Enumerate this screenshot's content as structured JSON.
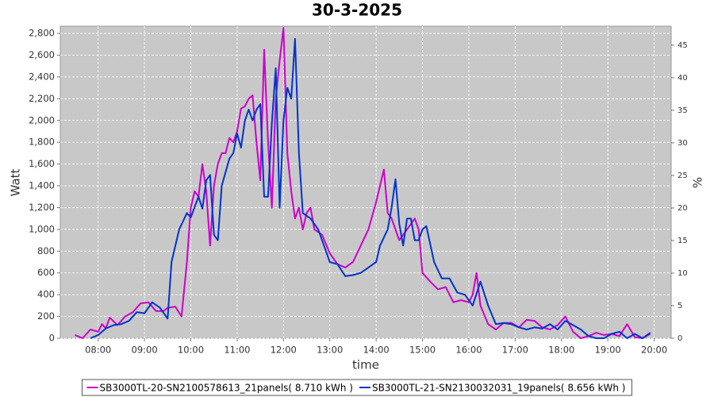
{
  "chart_data": {
    "type": "line",
    "title": "30-3-2025",
    "x_label": "time",
    "y_label": "Watt",
    "y2_label": "%",
    "xlim": [
      "07:11",
      "20:22"
    ],
    "xticks": [
      "08:00",
      "09:00",
      "10:00",
      "11:00",
      "12:00",
      "13:00",
      "14:00",
      "15:00",
      "16:00",
      "17:00",
      "18:00",
      "19:00",
      "20:00"
    ],
    "ylim": [
      0,
      2866
    ],
    "yticks": [
      0,
      200,
      400,
      600,
      800,
      {
        "value": 1000,
        "label": "1,000"
      },
      {
        "value": 1200,
        "label": "1,200"
      },
      {
        "value": 1400,
        "label": "1,400"
      },
      {
        "value": 1600,
        "label": "1,600"
      },
      {
        "value": 1800,
        "label": "1,800"
      },
      {
        "value": 2000,
        "label": "2,000"
      },
      {
        "value": 2200,
        "label": "2,200"
      },
      {
        "value": 2400,
        "label": "2,400"
      },
      {
        "value": 2600,
        "label": "2,600"
      },
      {
        "value": 2800,
        "label": "2,800"
      }
    ],
    "y2lim": [
      0,
      47.9
    ],
    "y2ticks": [
      0,
      5,
      10,
      15,
      20,
      25,
      30,
      35,
      40,
      45
    ],
    "grid": true,
    "legend": "bottom",
    "series": [
      {
        "name": "SB3000TL-20-SN2100578613_21panels( 8.710 kWh )",
        "color": "#cc00cc",
        "x": [
          "07:30",
          "07:40",
          "07:50",
          "08:00",
          "08:05",
          "08:10",
          "08:15",
          "08:25",
          "08:35",
          "08:45",
          "08:55",
          "09:05",
          "09:15",
          "09:25",
          "09:30",
          "09:40",
          "09:48",
          "09:55",
          "10:00",
          "10:05",
          "10:10",
          "10:15",
          "10:20",
          "10:25",
          "10:30",
          "10:35",
          "10:40",
          "10:45",
          "10:50",
          "10:55",
          "11:00",
          "11:05",
          "11:10",
          "11:15",
          "11:20",
          "11:25",
          "11:30",
          "11:35",
          "11:40",
          "11:45",
          "11:50",
          "11:55",
          "12:00",
          "12:05",
          "12:10",
          "12:15",
          "12:20",
          "12:25",
          "12:30",
          "12:35",
          "12:40",
          "12:50",
          "13:00",
          "13:10",
          "13:20",
          "13:30",
          "13:40",
          "13:50",
          "14:00",
          "14:10",
          "14:15",
          "14:20",
          "14:30",
          "14:40",
          "14:50",
          "14:55",
          "15:00",
          "15:10",
          "15:20",
          "15:30",
          "15:40",
          "15:50",
          "16:00",
          "16:05",
          "16:10",
          "16:15",
          "16:25",
          "16:35",
          "16:45",
          "16:55",
          "17:05",
          "17:15",
          "17:25",
          "17:35",
          "17:45",
          "17:55",
          "18:05",
          "18:15",
          "18:25",
          "18:35",
          "18:45",
          "18:55",
          "19:05",
          "19:15",
          "19:25",
          "19:35",
          "19:45",
          "19:55"
        ],
        "values": [
          30,
          0,
          80,
          60,
          130,
          90,
          190,
          120,
          200,
          240,
          320,
          330,
          250,
          250,
          280,
          290,
          200,
          700,
          1200,
          1350,
          1300,
          1600,
          1350,
          850,
          1400,
          1600,
          1700,
          1700,
          1840,
          1800,
          1900,
          2110,
          2130,
          2200,
          2230,
          1800,
          1450,
          2650,
          1800,
          1200,
          2200,
          2550,
          2850,
          1700,
          1350,
          1100,
          1200,
          1000,
          1150,
          1200,
          1000,
          950,
          780,
          680,
          650,
          700,
          850,
          1000,
          1250,
          1550,
          1150,
          1100,
          900,
          1000,
          1100,
          1000,
          600,
          520,
          450,
          470,
          330,
          350,
          330,
          400,
          600,
          300,
          130,
          80,
          140,
          140,
          100,
          170,
          160,
          100,
          80,
          120,
          200,
          60,
          0,
          20,
          50,
          30,
          40,
          20,
          130,
          10,
          0,
          40
        ]
      },
      {
        "name": "SB3000TL-21-SN2130032031_19panels( 8.656 kWh )",
        "color": "#0033cc",
        "x": [
          "07:50",
          "08:00",
          "08:10",
          "08:20",
          "08:30",
          "08:40",
          "08:50",
          "09:00",
          "09:10",
          "09:20",
          "09:30",
          "09:35",
          "09:45",
          "09:55",
          "10:00",
          "10:10",
          "10:15",
          "10:20",
          "10:25",
          "10:30",
          "10:35",
          "10:40",
          "10:50",
          "10:55",
          "11:00",
          "11:05",
          "11:10",
          "11:15",
          "11:20",
          "11:25",
          "11:30",
          "11:35",
          "11:40",
          "11:45",
          "11:50",
          "11:55",
          "12:00",
          "12:05",
          "12:10",
          "12:15",
          "12:20",
          "12:25",
          "12:35",
          "12:45",
          "12:55",
          "13:00",
          "13:10",
          "13:20",
          "13:30",
          "13:40",
          "13:50",
          "14:00",
          "14:05",
          "14:15",
          "14:20",
          "14:25",
          "14:30",
          "14:35",
          "14:40",
          "14:45",
          "14:50",
          "14:55",
          "15:00",
          "15:05",
          "15:15",
          "15:25",
          "15:35",
          "15:45",
          "15:55",
          "16:05",
          "16:15",
          "16:25",
          "16:35",
          "16:45",
          "16:55",
          "17:05",
          "17:15",
          "17:25",
          "17:35",
          "17:45",
          "17:55",
          "18:05",
          "18:15",
          "18:25",
          "18:35",
          "18:45",
          "18:55",
          "19:05",
          "19:15",
          "19:25",
          "19:35",
          "19:45",
          "19:55"
        ],
        "values": [
          0,
          30,
          90,
          120,
          130,
          160,
          240,
          230,
          330,
          280,
          180,
          700,
          1000,
          1150,
          1110,
          1300,
          1190,
          1450,
          1500,
          950,
          900,
          1400,
          1650,
          1700,
          1880,
          1750,
          2000,
          2100,
          2000,
          2100,
          2150,
          1300,
          1300,
          1980,
          2480,
          1200,
          2000,
          2300,
          2200,
          2750,
          1700,
          1150,
          1100,
          1000,
          800,
          700,
          680,
          570,
          580,
          600,
          650,
          700,
          850,
          1000,
          1200,
          1460,
          1050,
          850,
          1100,
          1100,
          900,
          900,
          1000,
          1030,
          700,
          550,
          550,
          420,
          400,
          300,
          520,
          300,
          130,
          140,
          130,
          100,
          80,
          100,
          90,
          130,
          80,
          160,
          120,
          80,
          20,
          0,
          0,
          40,
          60,
          0,
          40,
          0,
          50
        ]
      }
    ]
  }
}
